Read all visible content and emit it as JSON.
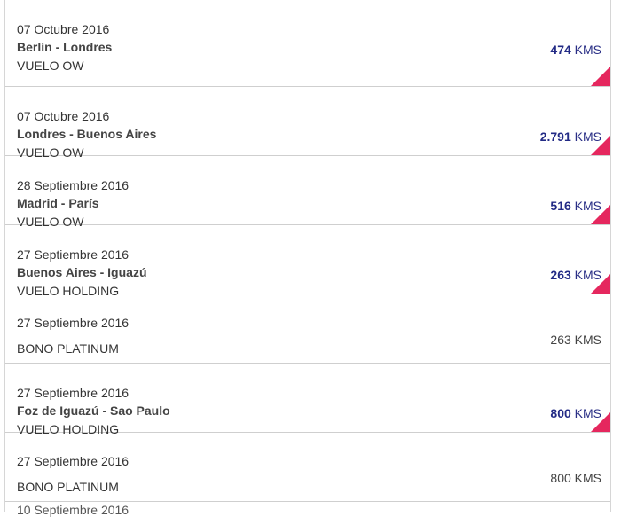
{
  "transactions": [
    {
      "date": "07 Octubre 2016",
      "route": "Berlín - Londres",
      "type": "VUELO OW",
      "amount": "474",
      "unit": "KMS"
    },
    {
      "date": "07 Octubre 2016",
      "route": "Londres - Buenos Aires",
      "type": "VUELO OW",
      "amount": "2.791",
      "unit": "KMS"
    },
    {
      "date": "28 Septiembre 2016",
      "route": "Madrid - París",
      "type": "VUELO OW",
      "amount": "516",
      "unit": "KMS"
    },
    {
      "date": "27 Septiembre 2016",
      "route": "Buenos Aires - Iguazú",
      "type": "VUELO HOLDING",
      "amount": "263",
      "unit": "KMS"
    },
    {
      "date": "27 Septiembre 2016",
      "route": "",
      "type": "BONO PLATINUM",
      "amount": "263",
      "unit": "KMS"
    },
    {
      "date": "27 Septiembre 2016",
      "route": "Foz de Iguazú - Sao Paulo",
      "type": "VUELO HOLDING",
      "amount": "800",
      "unit": "KMS"
    },
    {
      "date": "27 Septiembre 2016",
      "route": "",
      "type": "BONO PLATINUM",
      "amount": "800",
      "unit": "KMS"
    }
  ],
  "partial_row": {
    "date": "10 Septiembre 2016"
  },
  "colors": {
    "accent": "#e5275e",
    "amount": "#222a85",
    "divider": "#cfcfcf"
  }
}
